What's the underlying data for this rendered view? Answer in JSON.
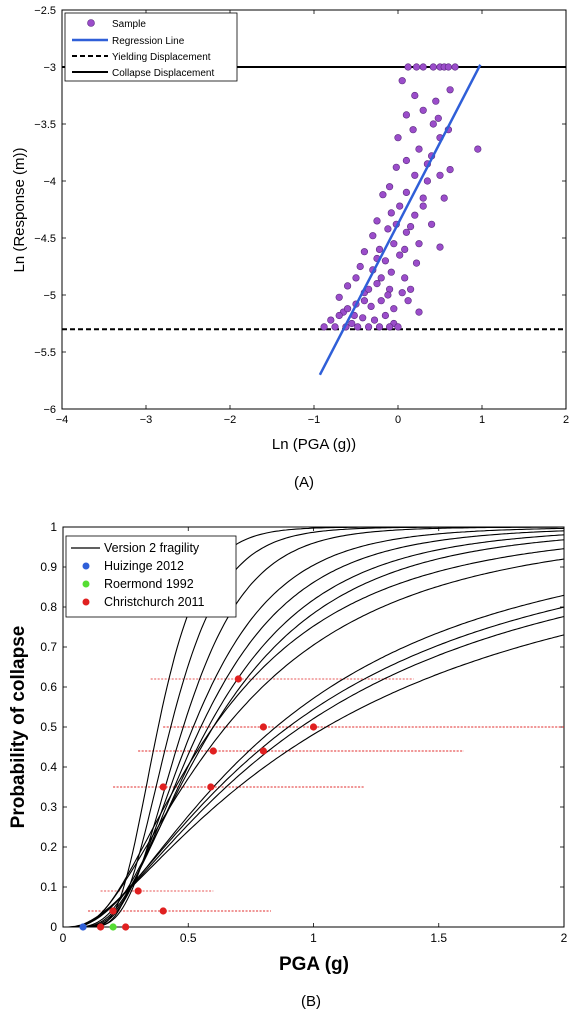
{
  "chart_data": [
    {
      "panel_label": "(A)",
      "type": "scatter",
      "xlabel": "Ln (PGA (g))",
      "ylabel": "Ln (Response (m))",
      "xlim": [
        -4,
        2
      ],
      "ylim": [
        -6,
        -2.5
      ],
      "xticks": [
        "−4",
        "−3",
        "−2",
        "−1",
        "0",
        "1",
        "2"
      ],
      "yticks": [
        "−2.5",
        "−3",
        "−3.5",
        "−4",
        "−4.5",
        "−5",
        "−5.5",
        "−6"
      ],
      "legend_position": "top-left",
      "legend": [
        "Sample",
        "Regression Line",
        "Yielding Displacement",
        "Collapse Displacement"
      ],
      "colors": {
        "sample": "#9b4dca",
        "regression": "#2f5fd8",
        "threshold": "#000000"
      },
      "regression_line": {
        "x": [
          -0.93,
          0.98
        ],
        "y": [
          -5.7,
          -2.98
        ]
      },
      "yielding_displacement": -5.3,
      "collapse_displacement": -3.0,
      "series": [
        {
          "name": "Sample",
          "points": [
            [
              0.12,
              -3.0
            ],
            [
              0.22,
              -3.0
            ],
            [
              0.3,
              -3.0
            ],
            [
              0.42,
              -3.0
            ],
            [
              0.5,
              -3.0
            ],
            [
              0.55,
              -3.0
            ],
            [
              0.6,
              -3.0
            ],
            [
              0.68,
              -3.0
            ],
            [
              0.05,
              -3.12
            ],
            [
              0.62,
              -3.2
            ],
            [
              0.2,
              -3.25
            ],
            [
              0.3,
              -3.38
            ],
            [
              0.1,
              -3.42
            ],
            [
              0.48,
              -3.45
            ],
            [
              0.18,
              -3.55
            ],
            [
              0.42,
              -3.5
            ],
            [
              0.6,
              -3.55
            ],
            [
              0.0,
              -3.62
            ],
            [
              0.5,
              -3.62
            ],
            [
              0.25,
              -3.72
            ],
            [
              0.95,
              -3.72
            ],
            [
              0.4,
              -3.78
            ],
            [
              0.1,
              -3.82
            ],
            [
              -0.02,
              -3.88
            ],
            [
              0.62,
              -3.9
            ],
            [
              0.2,
              -3.95
            ],
            [
              0.35,
              -4.0
            ],
            [
              -0.1,
              -4.05
            ],
            [
              0.1,
              -4.1
            ],
            [
              -0.18,
              -4.12
            ],
            [
              0.55,
              -4.15
            ],
            [
              0.02,
              -4.22
            ],
            [
              0.3,
              -4.22
            ],
            [
              -0.08,
              -4.28
            ],
            [
              0.2,
              -4.3
            ],
            [
              -0.25,
              -4.35
            ],
            [
              0.4,
              -4.38
            ],
            [
              -0.12,
              -4.42
            ],
            [
              0.1,
              -4.45
            ],
            [
              -0.3,
              -4.48
            ],
            [
              -0.05,
              -4.55
            ],
            [
              0.25,
              -4.55
            ],
            [
              -0.22,
              -4.6
            ],
            [
              0.5,
              -4.58
            ],
            [
              -0.4,
              -4.62
            ],
            [
              0.02,
              -4.65
            ],
            [
              -0.15,
              -4.7
            ],
            [
              0.22,
              -4.72
            ],
            [
              -0.3,
              -4.78
            ],
            [
              -0.08,
              -4.8
            ],
            [
              -0.5,
              -4.85
            ],
            [
              0.08,
              -4.85
            ],
            [
              -0.25,
              -4.9
            ],
            [
              -0.6,
              -4.92
            ],
            [
              -0.1,
              -4.95
            ],
            [
              0.05,
              -4.98
            ],
            [
              -0.4,
              -4.98
            ],
            [
              -0.7,
              -5.02
            ],
            [
              -0.2,
              -5.05
            ],
            [
              0.12,
              -5.05
            ],
            [
              -0.5,
              -5.08
            ],
            [
              -0.32,
              -5.1
            ],
            [
              -0.05,
              -5.12
            ],
            [
              -0.65,
              -5.15
            ],
            [
              0.25,
              -5.15
            ],
            [
              -0.15,
              -5.18
            ],
            [
              -0.42,
              -5.2
            ],
            [
              -0.8,
              -5.22
            ],
            [
              -0.28,
              -5.22
            ],
            [
              -0.55,
              -5.25
            ],
            [
              -0.05,
              -5.25
            ],
            [
              -0.88,
              -5.28
            ],
            [
              -0.75,
              -5.28
            ],
            [
              -0.62,
              -5.28
            ],
            [
              -0.48,
              -5.28
            ],
            [
              -0.35,
              -5.28
            ],
            [
              -0.22,
              -5.28
            ],
            [
              -0.1,
              -5.28
            ],
            [
              0.0,
              -5.28
            ],
            [
              -0.6,
              -5.12
            ],
            [
              -0.35,
              -4.95
            ],
            [
              -0.45,
              -4.75
            ],
            [
              -0.2,
              -4.85
            ],
            [
              0.15,
              -4.4
            ],
            [
              -0.02,
              -4.38
            ],
            [
              0.35,
              -3.85
            ],
            [
              0.45,
              -3.3
            ],
            [
              0.15,
              -4.95
            ],
            [
              -0.52,
              -5.18
            ],
            [
              -0.7,
              -5.18
            ],
            [
              -0.12,
              -5.0
            ],
            [
              0.3,
              -4.15
            ],
            [
              0.5,
              -3.95
            ],
            [
              -0.25,
              -4.68
            ],
            [
              0.08,
              -4.6
            ],
            [
              -0.4,
              -5.05
            ]
          ]
        }
      ]
    },
    {
      "panel_label": "(B)",
      "type": "line",
      "xlabel": "PGA (g)",
      "ylabel": "Probability of collapse",
      "xlim": [
        0,
        2
      ],
      "ylim": [
        0,
        1
      ],
      "xticks": [
        "0",
        "0.5",
        "1",
        "1.5",
        "2"
      ],
      "yticks": [
        "0",
        "0.1",
        "0.2",
        "0.3",
        "0.4",
        "0.5",
        "0.6",
        "0.7",
        "0.8",
        "0.9",
        "1"
      ],
      "legend_position": "top-left",
      "legend": [
        "Version 2 fragility",
        "Huizinge 2012",
        "Roermond 1992",
        "Christchurch 2011"
      ],
      "colors": {
        "fragility": "#000000",
        "huizinge": "#2f5fd8",
        "roermond": "#55dd33",
        "christchurch": "#e02020",
        "error_bar": "#e02020"
      },
      "fragility_curves_lognormal": [
        {
          "median": 0.38,
          "beta": 0.35
        },
        {
          "median": 0.43,
          "beta": 0.38
        },
        {
          "median": 0.48,
          "beta": 0.42
        },
        {
          "median": 0.52,
          "beta": 0.5
        },
        {
          "median": 0.55,
          "beta": 0.55
        },
        {
          "median": 0.58,
          "beta": 0.6
        },
        {
          "median": 0.6,
          "beta": 0.65
        },
        {
          "median": 0.6,
          "beta": 0.75
        },
        {
          "median": 0.65,
          "beta": 0.8
        },
        {
          "median": 0.85,
          "beta": 0.9
        },
        {
          "median": 0.9,
          "beta": 0.95
        },
        {
          "median": 0.95,
          "beta": 0.98
        },
        {
          "median": 1.05,
          "beta": 1.05
        }
      ],
      "huizinge_2012": [
        {
          "x": 0.08,
          "y": 0.0
        }
      ],
      "roermond_1992": [
        {
          "x": 0.2,
          "y": 0.0
        }
      ],
      "christchurch_2011": [
        {
          "x": 0.15,
          "y": 0.0
        },
        {
          "x": 0.25,
          "y": 0.0
        },
        {
          "x": 0.2,
          "y": 0.04,
          "xmin": 0.1,
          "xmax": 0.83
        },
        {
          "x": 0.4,
          "y": 0.04,
          "xmin": 0.1,
          "xmax": 0.83
        },
        {
          "x": 0.3,
          "y": 0.09,
          "xmin": 0.15,
          "xmax": 0.6
        },
        {
          "x": 0.4,
          "y": 0.35,
          "xmin": 0.2,
          "xmax": 1.2
        },
        {
          "x": 0.59,
          "y": 0.35,
          "xmin": 0.2,
          "xmax": 1.2
        },
        {
          "x": 0.6,
          "y": 0.44,
          "xmin": 0.3,
          "xmax": 1.6
        },
        {
          "x": 0.8,
          "y": 0.44,
          "xmin": 0.3,
          "xmax": 1.6
        },
        {
          "x": 0.8,
          "y": 0.5,
          "xmin": 0.4,
          "xmax": 2.0
        },
        {
          "x": 1.0,
          "y": 0.5,
          "xmin": 0.4,
          "xmax": 2.0
        },
        {
          "x": 0.7,
          "y": 0.62,
          "xmin": 0.35,
          "xmax": 1.4
        }
      ]
    }
  ]
}
